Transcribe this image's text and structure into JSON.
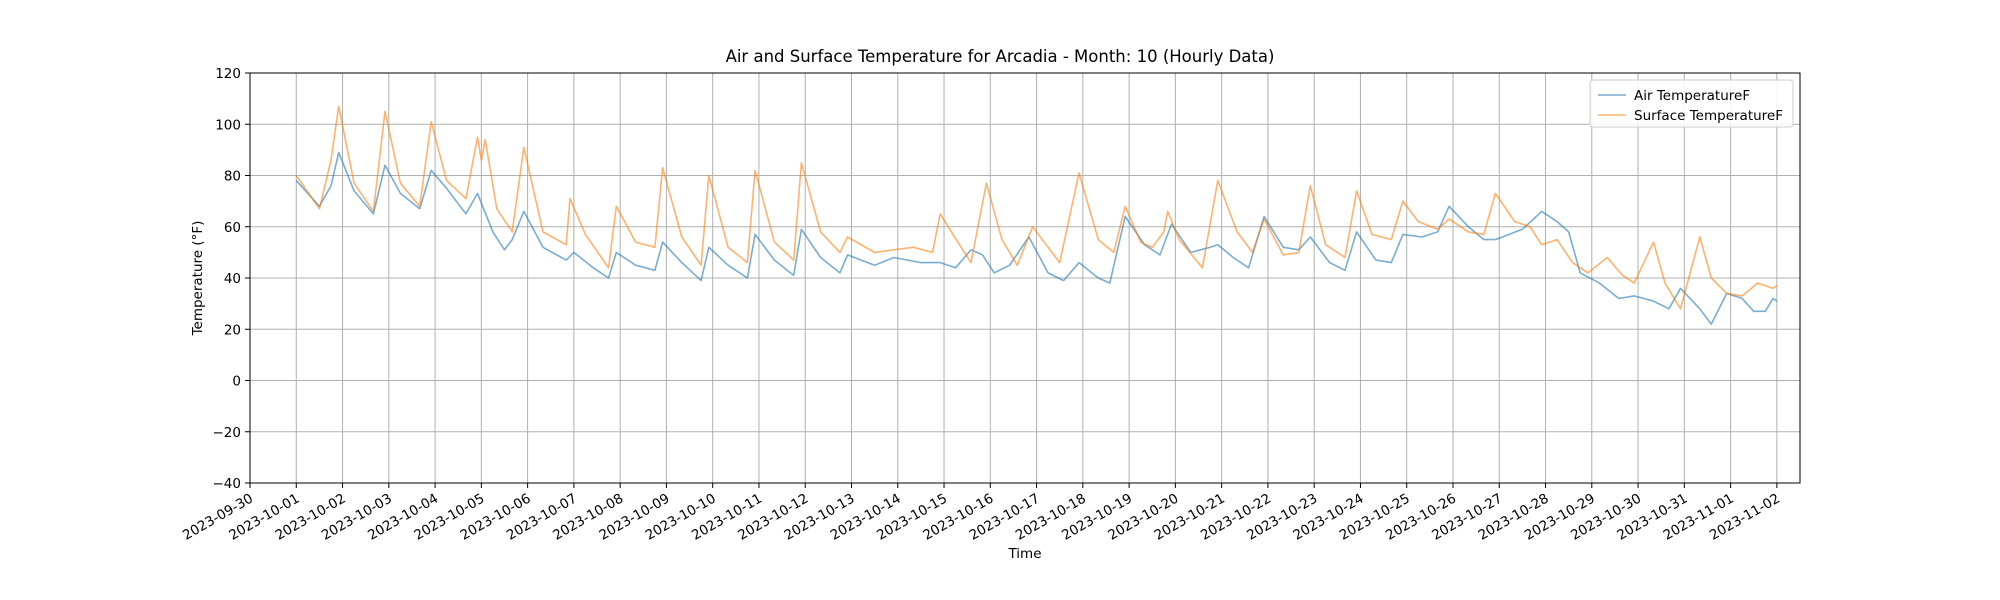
{
  "chart_data": {
    "type": "line",
    "title": "Air and Surface Temperature for Arcadia - Month: 10 (Hourly Data)",
    "xlabel": "Time",
    "ylabel": "Temperature (°F)",
    "xlim": [
      "2023-09-30T00:00",
      "2023-11-02T12:00"
    ],
    "ylim": [
      -40,
      120
    ],
    "grid": true,
    "legend_position": "upper right",
    "x_ticks": [
      "2023-09-30",
      "2023-10-01",
      "2023-10-02",
      "2023-10-03",
      "2023-10-04",
      "2023-10-05",
      "2023-10-06",
      "2023-10-07",
      "2023-10-08",
      "2023-10-09",
      "2023-10-10",
      "2023-10-11",
      "2023-10-12",
      "2023-10-13",
      "2023-10-14",
      "2023-10-15",
      "2023-10-16",
      "2023-10-17",
      "2023-10-18",
      "2023-10-19",
      "2023-10-20",
      "2023-10-21",
      "2023-10-22",
      "2023-10-23",
      "2023-10-24",
      "2023-10-25",
      "2023-10-26",
      "2023-10-27",
      "2023-10-28",
      "2023-10-29",
      "2023-10-30",
      "2023-10-31",
      "2023-11-01",
      "2023-11-02"
    ],
    "y_ticks": [
      -40,
      -20,
      0,
      20,
      40,
      60,
      80,
      100,
      120
    ],
    "series": [
      {
        "name": "Air TemperatureF",
        "color": "#1f77b4",
        "points": [
          [
            "2023-10-01T00:00",
            78
          ],
          [
            "2023-10-01T12:00",
            68
          ],
          [
            "2023-10-01T18:00",
            76
          ],
          [
            "2023-10-01T22:00",
            89
          ],
          [
            "2023-10-02T06:00",
            74
          ],
          [
            "2023-10-02T16:00",
            65
          ],
          [
            "2023-10-02T22:00",
            84
          ],
          [
            "2023-10-03T06:00",
            73
          ],
          [
            "2023-10-03T16:00",
            67
          ],
          [
            "2023-10-03T22:00",
            82
          ],
          [
            "2023-10-04T06:00",
            75
          ],
          [
            "2023-10-04T16:00",
            65
          ],
          [
            "2023-10-04T22:00",
            73
          ],
          [
            "2023-10-05T06:00",
            58
          ],
          [
            "2023-10-05T12:00",
            51
          ],
          [
            "2023-10-05T16:00",
            55
          ],
          [
            "2023-10-05T22:00",
            66
          ],
          [
            "2023-10-06T08:00",
            52
          ],
          [
            "2023-10-06T20:00",
            47
          ],
          [
            "2023-10-07T00:00",
            50
          ],
          [
            "2023-10-07T10:00",
            44
          ],
          [
            "2023-10-07T18:00",
            40
          ],
          [
            "2023-10-07T22:00",
            50
          ],
          [
            "2023-10-08T08:00",
            45
          ],
          [
            "2023-10-08T18:00",
            43
          ],
          [
            "2023-10-08T22:00",
            54
          ],
          [
            "2023-10-09T08:00",
            46
          ],
          [
            "2023-10-09T18:00",
            39
          ],
          [
            "2023-10-09T22:00",
            52
          ],
          [
            "2023-10-10T08:00",
            45
          ],
          [
            "2023-10-10T18:00",
            40
          ],
          [
            "2023-10-10T22:00",
            57
          ],
          [
            "2023-10-11T08:00",
            47
          ],
          [
            "2023-10-11T18:00",
            41
          ],
          [
            "2023-10-11T22:00",
            59
          ],
          [
            "2023-10-12T08:00",
            48
          ],
          [
            "2023-10-12T18:00",
            42
          ],
          [
            "2023-10-12T22:00",
            49
          ],
          [
            "2023-10-13T12:00",
            45
          ],
          [
            "2023-10-13T22:00",
            48
          ],
          [
            "2023-10-14T12:00",
            46
          ],
          [
            "2023-10-14T22:00",
            46
          ],
          [
            "2023-10-15T06:00",
            44
          ],
          [
            "2023-10-15T14:00",
            51
          ],
          [
            "2023-10-15T20:00",
            49
          ],
          [
            "2023-10-16T02:00",
            42
          ],
          [
            "2023-10-16T10:00",
            45
          ],
          [
            "2023-10-16T20:00",
            56
          ],
          [
            "2023-10-17T06:00",
            42
          ],
          [
            "2023-10-17T14:00",
            39
          ],
          [
            "2023-10-17T22:00",
            46
          ],
          [
            "2023-10-18T08:00",
            40
          ],
          [
            "2023-10-18T14:00",
            38
          ],
          [
            "2023-10-18T22:00",
            64
          ],
          [
            "2023-10-19T08:00",
            53
          ],
          [
            "2023-10-19T16:00",
            49
          ],
          [
            "2023-10-19T22:00",
            61
          ],
          [
            "2023-10-20T08:00",
            50
          ],
          [
            "2023-10-20T18:00",
            52
          ],
          [
            "2023-10-20T22:00",
            53
          ],
          [
            "2023-10-21T06:00",
            48
          ],
          [
            "2023-10-21T14:00",
            44
          ],
          [
            "2023-10-21T22:00",
            64
          ],
          [
            "2023-10-22T08:00",
            52
          ],
          [
            "2023-10-22T16:00",
            51
          ],
          [
            "2023-10-22T22:00",
            56
          ],
          [
            "2023-10-23T08:00",
            46
          ],
          [
            "2023-10-23T16:00",
            43
          ],
          [
            "2023-10-23T22:00",
            58
          ],
          [
            "2023-10-24T08:00",
            47
          ],
          [
            "2023-10-24T16:00",
            46
          ],
          [
            "2023-10-24T22:00",
            57
          ],
          [
            "2023-10-25T08:00",
            56
          ],
          [
            "2023-10-25T16:00",
            58
          ],
          [
            "2023-10-25T22:00",
            68
          ],
          [
            "2023-10-26T08:00",
            60
          ],
          [
            "2023-10-26T16:00",
            55
          ],
          [
            "2023-10-26T22:00",
            55
          ],
          [
            "2023-10-27T12:00",
            59
          ],
          [
            "2023-10-27T22:00",
            66
          ],
          [
            "2023-10-28T06:00",
            62
          ],
          [
            "2023-10-28T12:00",
            58
          ],
          [
            "2023-10-28T18:00",
            42
          ],
          [
            "2023-10-29T04:00",
            38
          ],
          [
            "2023-10-29T14:00",
            32
          ],
          [
            "2023-10-29T22:00",
            33
          ],
          [
            "2023-10-30T08:00",
            31
          ],
          [
            "2023-10-30T16:00",
            28
          ],
          [
            "2023-10-30T22:00",
            36
          ],
          [
            "2023-10-31T08:00",
            28
          ],
          [
            "2023-10-31T14:00",
            22
          ],
          [
            "2023-10-31T22:00",
            34
          ],
          [
            "2023-11-01T06:00",
            32
          ],
          [
            "2023-11-01T12:00",
            27
          ],
          [
            "2023-11-01T18:00",
            27
          ],
          [
            "2023-11-01T22:00",
            32
          ],
          [
            "2023-11-02T00:00",
            31
          ]
        ]
      },
      {
        "name": "Surface TemperatureF",
        "color": "#ff7f0e",
        "points": [
          [
            "2023-10-01T00:00",
            80
          ],
          [
            "2023-10-01T12:00",
            67
          ],
          [
            "2023-10-01T18:00",
            86
          ],
          [
            "2023-10-01T22:00",
            107
          ],
          [
            "2023-10-02T06:00",
            77
          ],
          [
            "2023-10-02T16:00",
            66
          ],
          [
            "2023-10-02T22:00",
            105
          ],
          [
            "2023-10-03T06:00",
            77
          ],
          [
            "2023-10-03T16:00",
            68
          ],
          [
            "2023-10-03T22:00",
            101
          ],
          [
            "2023-10-04T06:00",
            78
          ],
          [
            "2023-10-04T16:00",
            71
          ],
          [
            "2023-10-04T22:00",
            95
          ],
          [
            "2023-10-05T00:00",
            86
          ],
          [
            "2023-10-05T02:00",
            94
          ],
          [
            "2023-10-05T08:00",
            67
          ],
          [
            "2023-10-05T16:00",
            58
          ],
          [
            "2023-10-05T22:00",
            91
          ],
          [
            "2023-10-06T08:00",
            58
          ],
          [
            "2023-10-06T20:00",
            53
          ],
          [
            "2023-10-06T22:00",
            71
          ],
          [
            "2023-10-07T06:00",
            57
          ],
          [
            "2023-10-07T18:00",
            44
          ],
          [
            "2023-10-07T22:00",
            68
          ],
          [
            "2023-10-08T08:00",
            54
          ],
          [
            "2023-10-08T18:00",
            52
          ],
          [
            "2023-10-08T22:00",
            83
          ],
          [
            "2023-10-09T08:00",
            56
          ],
          [
            "2023-10-09T18:00",
            45
          ],
          [
            "2023-10-09T22:00",
            80
          ],
          [
            "2023-10-10T08:00",
            52
          ],
          [
            "2023-10-10T18:00",
            46
          ],
          [
            "2023-10-10T22:00",
            82
          ],
          [
            "2023-10-11T08:00",
            54
          ],
          [
            "2023-10-11T18:00",
            47
          ],
          [
            "2023-10-11T22:00",
            85
          ],
          [
            "2023-10-12T08:00",
            58
          ],
          [
            "2023-10-12T18:00",
            50
          ],
          [
            "2023-10-12T22:00",
            56
          ],
          [
            "2023-10-13T12:00",
            50
          ],
          [
            "2023-10-13T22:00",
            51
          ],
          [
            "2023-10-14T08:00",
            52
          ],
          [
            "2023-10-14T18:00",
            50
          ],
          [
            "2023-10-14T22:00",
            65
          ],
          [
            "2023-10-15T08:00",
            53
          ],
          [
            "2023-10-15T14:00",
            46
          ],
          [
            "2023-10-15T22:00",
            77
          ],
          [
            "2023-10-16T06:00",
            55
          ],
          [
            "2023-10-16T14:00",
            45
          ],
          [
            "2023-10-16T22:00",
            60
          ],
          [
            "2023-10-17T06:00",
            52
          ],
          [
            "2023-10-17T12:00",
            46
          ],
          [
            "2023-10-17T22:00",
            81
          ],
          [
            "2023-10-18T08:00",
            55
          ],
          [
            "2023-10-18T16:00",
            50
          ],
          [
            "2023-10-18T22:00",
            68
          ],
          [
            "2023-10-19T06:00",
            54
          ],
          [
            "2023-10-19T12:00",
            52
          ],
          [
            "2023-10-19T18:00",
            58
          ],
          [
            "2023-10-19T20:00",
            66
          ],
          [
            "2023-10-20T02:00",
            55
          ],
          [
            "2023-10-20T14:00",
            44
          ],
          [
            "2023-10-20T22:00",
            78
          ],
          [
            "2023-10-21T08:00",
            58
          ],
          [
            "2023-10-21T16:00",
            50
          ],
          [
            "2023-10-21T22:00",
            63
          ],
          [
            "2023-10-22T08:00",
            49
          ],
          [
            "2023-10-22T16:00",
            50
          ],
          [
            "2023-10-22T22:00",
            76
          ],
          [
            "2023-10-23T06:00",
            53
          ],
          [
            "2023-10-23T16:00",
            48
          ],
          [
            "2023-10-23T22:00",
            74
          ],
          [
            "2023-10-24T06:00",
            57
          ],
          [
            "2023-10-24T16:00",
            55
          ],
          [
            "2023-10-24T22:00",
            70
          ],
          [
            "2023-10-25T06:00",
            62
          ],
          [
            "2023-10-25T16:00",
            59
          ],
          [
            "2023-10-25T22:00",
            63
          ],
          [
            "2023-10-26T08:00",
            58
          ],
          [
            "2023-10-26T16:00",
            57
          ],
          [
            "2023-10-26T22:00",
            73
          ],
          [
            "2023-10-27T08:00",
            62
          ],
          [
            "2023-10-27T16:00",
            60
          ],
          [
            "2023-10-27T22:00",
            53
          ],
          [
            "2023-10-28T06:00",
            55
          ],
          [
            "2023-10-28T14:00",
            46
          ],
          [
            "2023-10-28T22:00",
            42
          ],
          [
            "2023-10-29T08:00",
            48
          ],
          [
            "2023-10-29T16:00",
            41
          ],
          [
            "2023-10-29T22:00",
            38
          ],
          [
            "2023-10-30T08:00",
            54
          ],
          [
            "2023-10-30T14:00",
            38
          ],
          [
            "2023-10-30T22:00",
            28
          ],
          [
            "2023-10-31T08:00",
            56
          ],
          [
            "2023-10-31T14:00",
            40
          ],
          [
            "2023-10-31T22:00",
            34
          ],
          [
            "2023-11-01T06:00",
            33
          ],
          [
            "2023-11-01T14:00",
            38
          ],
          [
            "2023-11-01T22:00",
            36
          ],
          [
            "2023-11-02T00:00",
            37
          ]
        ]
      }
    ]
  }
}
